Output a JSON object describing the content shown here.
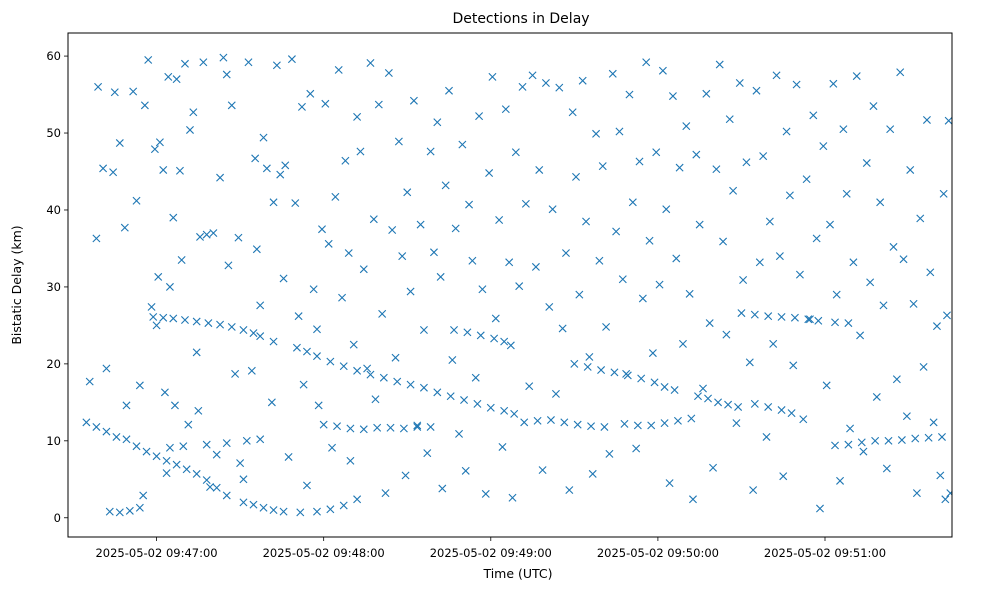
{
  "chart_data": {
    "type": "scatter",
    "title": "Detections in Delay",
    "xlabel": "Time (UTC)",
    "ylabel": "Bistatic Delay (km)",
    "x_unit": "minutes after 2025-05-02 09:46:00 UTC",
    "xlim": [
      0.47,
      5.76
    ],
    "ylim": [
      -2.5,
      63
    ],
    "x_ticks": [
      {
        "value": 1,
        "label": "2025-05-02 09:47:00"
      },
      {
        "value": 2,
        "label": "2025-05-02 09:48:00"
      },
      {
        "value": 3,
        "label": "2025-05-02 09:49:00"
      },
      {
        "value": 4,
        "label": "2025-05-02 09:50:00"
      },
      {
        "value": 5,
        "label": "2025-05-02 09:51:00"
      }
    ],
    "y_ticks": [
      0,
      10,
      20,
      30,
      40,
      50,
      60
    ],
    "marker": "x",
    "color": "#1f77b4",
    "track_points": [
      [
        0.98,
        26.1
      ],
      [
        1.04,
        26.0
      ],
      [
        1.1,
        25.9
      ],
      [
        1.17,
        25.7
      ],
      [
        1.24,
        25.5
      ],
      [
        1.31,
        25.3
      ],
      [
        1.38,
        25.1
      ],
      [
        1.45,
        24.8
      ],
      [
        1.52,
        24.4
      ],
      [
        1.58,
        24.0
      ],
      [
        1.62,
        23.6
      ],
      [
        1.7,
        22.9
      ],
      [
        1.84,
        22.1
      ],
      [
        1.9,
        21.6
      ],
      [
        1.96,
        21.0
      ],
      [
        2.04,
        20.3
      ],
      [
        2.12,
        19.7
      ],
      [
        2.2,
        19.1
      ],
      [
        2.28,
        18.6
      ],
      [
        2.36,
        18.2
      ],
      [
        2.44,
        17.7
      ],
      [
        2.52,
        17.3
      ],
      [
        2.6,
        16.9
      ],
      [
        2.68,
        16.3
      ],
      [
        2.76,
        15.8
      ],
      [
        2.84,
        15.3
      ],
      [
        2.92,
        14.8
      ],
      [
        3.0,
        14.3
      ],
      [
        3.08,
        13.9
      ],
      [
        3.14,
        13.5
      ],
      [
        2.78,
        24.4
      ],
      [
        2.86,
        24.1
      ],
      [
        2.94,
        23.7
      ],
      [
        3.02,
        23.3
      ],
      [
        3.08,
        22.9
      ],
      [
        3.12,
        22.4
      ],
      [
        3.5,
        20.0
      ],
      [
        3.58,
        19.6
      ],
      [
        3.66,
        19.2
      ],
      [
        3.74,
        18.9
      ],
      [
        3.82,
        18.5
      ],
      [
        3.9,
        18.1
      ],
      [
        3.98,
        17.6
      ],
      [
        4.04,
        17.0
      ],
      [
        4.1,
        16.6
      ],
      [
        4.24,
        15.8
      ],
      [
        4.3,
        15.5
      ],
      [
        4.36,
        15.0
      ],
      [
        4.42,
        14.7
      ],
      [
        4.48,
        14.4
      ],
      [
        4.58,
        14.8
      ],
      [
        4.66,
        14.4
      ],
      [
        4.74,
        14.0
      ],
      [
        4.8,
        13.6
      ],
      [
        4.5,
        26.6
      ],
      [
        4.58,
        26.4
      ],
      [
        4.66,
        26.2
      ],
      [
        4.74,
        26.1
      ],
      [
        4.82,
        26.0
      ],
      [
        4.9,
        25.8
      ],
      [
        4.96,
        25.6
      ],
      [
        5.06,
        25.4
      ],
      [
        5.14,
        25.3
      ],
      [
        0.58,
        12.4
      ],
      [
        0.64,
        11.8
      ],
      [
        0.7,
        11.2
      ],
      [
        0.76,
        10.5
      ],
      [
        0.82,
        10.2
      ],
      [
        0.88,
        9.3
      ],
      [
        0.94,
        8.6
      ],
      [
        1.0,
        8.0
      ],
      [
        1.06,
        7.4
      ],
      [
        1.12,
        6.9
      ],
      [
        1.18,
        6.3
      ],
      [
        1.24,
        5.7
      ],
      [
        1.3,
        4.9
      ],
      [
        1.36,
        3.9
      ],
      [
        1.42,
        2.9
      ],
      [
        1.52,
        2.0
      ],
      [
        1.58,
        1.7
      ],
      [
        1.64,
        1.3
      ],
      [
        1.7,
        1.0
      ],
      [
        1.76,
        0.8
      ],
      [
        1.86,
        0.7
      ],
      [
        1.96,
        0.8
      ],
      [
        2.04,
        1.1
      ],
      [
        2.12,
        1.6
      ],
      [
        2.2,
        2.4
      ],
      [
        0.72,
        0.8
      ],
      [
        0.78,
        0.7
      ],
      [
        0.84,
        0.9
      ],
      [
        0.9,
        1.3
      ],
      [
        2.0,
        12.1
      ],
      [
        2.08,
        11.9
      ],
      [
        2.16,
        11.6
      ],
      [
        2.24,
        11.5
      ],
      [
        2.32,
        11.7
      ],
      [
        2.4,
        11.7
      ],
      [
        2.48,
        11.6
      ],
      [
        2.56,
        11.8
      ],
      [
        2.64,
        11.8
      ],
      [
        3.2,
        12.4
      ],
      [
        3.28,
        12.6
      ],
      [
        3.36,
        12.7
      ],
      [
        3.44,
        12.4
      ],
      [
        3.52,
        12.1
      ],
      [
        3.6,
        11.9
      ],
      [
        3.68,
        11.8
      ],
      [
        3.8,
        12.2
      ],
      [
        3.88,
        12.0
      ],
      [
        3.96,
        12.0
      ],
      [
        4.04,
        12.3
      ],
      [
        4.12,
        12.6
      ],
      [
        4.2,
        12.9
      ],
      [
        1.08,
        9.1
      ],
      [
        1.16,
        9.3
      ],
      [
        1.3,
        9.5
      ],
      [
        1.42,
        9.7
      ],
      [
        1.54,
        10.0
      ],
      [
        1.62,
        10.2
      ],
      [
        5.06,
        9.4
      ],
      [
        5.14,
        9.5
      ],
      [
        5.22,
        9.8
      ],
      [
        5.3,
        10.0
      ],
      [
        5.38,
        10.0
      ],
      [
        5.46,
        10.1
      ],
      [
        5.54,
        10.3
      ],
      [
        5.62,
        10.4
      ],
      [
        5.7,
        10.5
      ]
    ],
    "noise_points": [
      [
        0.6,
        17.7
      ],
      [
        0.64,
        36.3
      ],
      [
        0.65,
        56.0
      ],
      [
        0.68,
        45.4
      ],
      [
        0.7,
        19.4
      ],
      [
        0.74,
        44.9
      ],
      [
        0.75,
        55.3
      ],
      [
        0.78,
        48.7
      ],
      [
        0.81,
        37.7
      ],
      [
        0.82,
        14.6
      ],
      [
        0.86,
        55.4
      ],
      [
        0.88,
        41.2
      ],
      [
        0.9,
        17.2
      ],
      [
        0.92,
        2.9
      ],
      [
        0.93,
        53.6
      ],
      [
        0.95,
        59.5
      ],
      [
        0.97,
        27.4
      ],
      [
        0.99,
        47.9
      ],
      [
        1.0,
        25.0
      ],
      [
        1.01,
        31.3
      ],
      [
        1.02,
        48.8
      ],
      [
        1.04,
        45.2
      ],
      [
        1.05,
        16.3
      ],
      [
        1.06,
        5.8
      ],
      [
        1.07,
        57.3
      ],
      [
        1.08,
        30.0
      ],
      [
        1.1,
        39.0
      ],
      [
        1.11,
        14.6
      ],
      [
        1.12,
        57.0
      ],
      [
        1.14,
        45.1
      ],
      [
        1.15,
        33.5
      ],
      [
        1.17,
        59.0
      ],
      [
        1.19,
        12.1
      ],
      [
        1.2,
        50.4
      ],
      [
        1.22,
        52.7
      ],
      [
        1.24,
        21.5
      ],
      [
        1.25,
        13.9
      ],
      [
        1.26,
        36.5
      ],
      [
        1.28,
        59.2
      ],
      [
        1.3,
        36.8
      ],
      [
        1.32,
        4.0
      ],
      [
        1.34,
        37.0
      ],
      [
        1.36,
        8.2
      ],
      [
        1.38,
        44.2
      ],
      [
        1.4,
        59.8
      ],
      [
        1.42,
        57.6
      ],
      [
        1.43,
        32.8
      ],
      [
        1.45,
        53.6
      ],
      [
        1.47,
        18.7
      ],
      [
        1.49,
        36.4
      ],
      [
        1.5,
        7.1
      ],
      [
        1.52,
        5.0
      ],
      [
        1.55,
        59.2
      ],
      [
        1.57,
        19.1
      ],
      [
        1.59,
        46.7
      ],
      [
        1.6,
        34.9
      ],
      [
        1.62,
        27.6
      ],
      [
        1.64,
        49.4
      ],
      [
        1.66,
        45.4
      ],
      [
        1.69,
        15.0
      ],
      [
        1.7,
        41.0
      ],
      [
        1.72,
        58.8
      ],
      [
        1.74,
        44.6
      ],
      [
        1.76,
        31.1
      ],
      [
        1.77,
        45.8
      ],
      [
        1.79,
        7.9
      ],
      [
        1.81,
        59.6
      ],
      [
        1.83,
        40.9
      ],
      [
        1.85,
        26.2
      ],
      [
        1.87,
        53.4
      ],
      [
        1.88,
        17.3
      ],
      [
        1.9,
        4.2
      ],
      [
        1.92,
        55.1
      ],
      [
        1.94,
        29.7
      ],
      [
        1.96,
        24.5
      ],
      [
        1.97,
        14.6
      ],
      [
        1.99,
        37.5
      ],
      [
        2.01,
        53.8
      ],
      [
        2.03,
        35.6
      ],
      [
        2.05,
        9.1
      ],
      [
        2.07,
        41.7
      ],
      [
        2.09,
        58.2
      ],
      [
        2.11,
        28.6
      ],
      [
        2.13,
        46.4
      ],
      [
        2.15,
        34.4
      ],
      [
        2.16,
        7.4
      ],
      [
        2.18,
        22.5
      ],
      [
        2.2,
        52.1
      ],
      [
        2.22,
        47.6
      ],
      [
        2.24,
        32.3
      ],
      [
        2.26,
        19.4
      ],
      [
        2.28,
        59.1
      ],
      [
        2.3,
        38.8
      ],
      [
        2.31,
        15.4
      ],
      [
        2.33,
        53.7
      ],
      [
        2.35,
        26.5
      ],
      [
        2.37,
        3.2
      ],
      [
        2.39,
        57.8
      ],
      [
        2.41,
        37.4
      ],
      [
        2.43,
        20.8
      ],
      [
        2.45,
        48.9
      ],
      [
        2.47,
        34.0
      ],
      [
        2.49,
        5.5
      ],
      [
        2.5,
        42.3
      ],
      [
        2.52,
        29.4
      ],
      [
        2.54,
        54.2
      ],
      [
        2.56,
        12.0
      ],
      [
        2.58,
        38.1
      ],
      [
        2.6,
        24.4
      ],
      [
        2.62,
        8.4
      ],
      [
        2.64,
        47.6
      ],
      [
        2.66,
        34.5
      ],
      [
        2.68,
        51.4
      ],
      [
        2.7,
        31.3
      ],
      [
        2.71,
        3.8
      ],
      [
        2.73,
        43.2
      ],
      [
        2.75,
        55.5
      ],
      [
        2.77,
        20.5
      ],
      [
        2.79,
        37.6
      ],
      [
        2.81,
        10.9
      ],
      [
        2.83,
        48.5
      ],
      [
        2.85,
        6.1
      ],
      [
        2.87,
        40.7
      ],
      [
        2.89,
        33.4
      ],
      [
        2.91,
        18.2
      ],
      [
        2.93,
        52.2
      ],
      [
        2.95,
        29.7
      ],
      [
        2.97,
        3.1
      ],
      [
        2.99,
        44.8
      ],
      [
        3.01,
        57.3
      ],
      [
        3.03,
        25.9
      ],
      [
        3.05,
        38.7
      ],
      [
        3.07,
        9.2
      ],
      [
        3.09,
        53.1
      ],
      [
        3.11,
        33.2
      ],
      [
        3.13,
        2.6
      ],
      [
        3.15,
        47.5
      ],
      [
        3.17,
        30.1
      ],
      [
        3.19,
        56.0
      ],
      [
        3.21,
        40.8
      ],
      [
        3.23,
        17.1
      ],
      [
        3.25,
        57.5
      ],
      [
        3.27,
        32.6
      ],
      [
        3.29,
        45.2
      ],
      [
        3.31,
        6.2
      ],
      [
        3.33,
        56.5
      ],
      [
        3.35,
        27.4
      ],
      [
        3.37,
        40.1
      ],
      [
        3.39,
        16.1
      ],
      [
        3.41,
        55.9
      ],
      [
        3.43,
        24.6
      ],
      [
        3.45,
        34.4
      ],
      [
        3.47,
        3.6
      ],
      [
        3.49,
        52.7
      ],
      [
        3.51,
        44.3
      ],
      [
        3.53,
        29.0
      ],
      [
        3.55,
        56.8
      ],
      [
        3.57,
        38.5
      ],
      [
        3.59,
        20.9
      ],
      [
        3.61,
        5.7
      ],
      [
        3.63,
        49.9
      ],
      [
        3.65,
        33.4
      ],
      [
        3.67,
        45.7
      ],
      [
        3.69,
        24.8
      ],
      [
        3.71,
        8.3
      ],
      [
        3.73,
        57.7
      ],
      [
        3.75,
        37.2
      ],
      [
        3.77,
        50.2
      ],
      [
        3.79,
        31.0
      ],
      [
        3.81,
        18.7
      ],
      [
        3.83,
        55.0
      ],
      [
        3.85,
        41.0
      ],
      [
        3.87,
        9.0
      ],
      [
        3.89,
        46.3
      ],
      [
        3.91,
        28.5
      ],
      [
        3.93,
        59.2
      ],
      [
        3.95,
        36.0
      ],
      [
        3.97,
        21.4
      ],
      [
        3.99,
        47.5
      ],
      [
        4.01,
        30.3
      ],
      [
        4.03,
        58.1
      ],
      [
        4.05,
        40.1
      ],
      [
        4.07,
        4.5
      ],
      [
        4.09,
        54.8
      ],
      [
        4.11,
        33.7
      ],
      [
        4.13,
        45.5
      ],
      [
        4.15,
        22.6
      ],
      [
        4.17,
        50.9
      ],
      [
        4.19,
        29.1
      ],
      [
        4.21,
        2.4
      ],
      [
        4.23,
        47.2
      ],
      [
        4.25,
        38.1
      ],
      [
        4.27,
        16.8
      ],
      [
        4.29,
        55.1
      ],
      [
        4.31,
        25.3
      ],
      [
        4.33,
        6.5
      ],
      [
        4.35,
        45.3
      ],
      [
        4.37,
        58.9
      ],
      [
        4.39,
        35.9
      ],
      [
        4.41,
        23.8
      ],
      [
        4.43,
        51.8
      ],
      [
        4.45,
        42.5
      ],
      [
        4.47,
        12.3
      ],
      [
        4.49,
        56.5
      ],
      [
        4.51,
        30.9
      ],
      [
        4.53,
        46.2
      ],
      [
        4.55,
        20.2
      ],
      [
        4.57,
        3.6
      ],
      [
        4.59,
        55.5
      ],
      [
        4.61,
        33.2
      ],
      [
        4.63,
        47.0
      ],
      [
        4.65,
        10.5
      ],
      [
        4.67,
        38.5
      ],
      [
        4.69,
        22.6
      ],
      [
        4.71,
        57.5
      ],
      [
        4.73,
        34.0
      ],
      [
        4.75,
        5.4
      ],
      [
        4.77,
        50.2
      ],
      [
        4.79,
        41.9
      ],
      [
        4.81,
        19.8
      ],
      [
        4.83,
        56.3
      ],
      [
        4.85,
        31.6
      ],
      [
        4.87,
        12.8
      ],
      [
        4.89,
        44.0
      ],
      [
        4.91,
        25.8
      ],
      [
        4.93,
        52.3
      ],
      [
        4.95,
        36.3
      ],
      [
        4.97,
        1.2
      ],
      [
        4.99,
        48.3
      ],
      [
        5.01,
        17.2
      ],
      [
        5.03,
        38.1
      ],
      [
        5.05,
        56.4
      ],
      [
        5.07,
        29.0
      ],
      [
        5.09,
        4.8
      ],
      [
        5.11,
        50.5
      ],
      [
        5.13,
        42.1
      ],
      [
        5.15,
        11.6
      ],
      [
        5.17,
        33.2
      ],
      [
        5.19,
        57.4
      ],
      [
        5.21,
        23.7
      ],
      [
        5.23,
        8.6
      ],
      [
        5.25,
        46.1
      ],
      [
        5.27,
        30.6
      ],
      [
        5.29,
        53.5
      ],
      [
        5.31,
        15.7
      ],
      [
        5.33,
        41.0
      ],
      [
        5.35,
        27.6
      ],
      [
        5.37,
        6.4
      ],
      [
        5.39,
        50.5
      ],
      [
        5.41,
        35.2
      ],
      [
        5.43,
        18.0
      ],
      [
        5.45,
        57.9
      ],
      [
        5.47,
        33.6
      ],
      [
        5.49,
        13.2
      ],
      [
        5.51,
        45.2
      ],
      [
        5.53,
        27.8
      ],
      [
        5.55,
        3.2
      ],
      [
        5.57,
        38.9
      ],
      [
        5.59,
        19.6
      ],
      [
        5.61,
        51.7
      ],
      [
        5.63,
        31.9
      ],
      [
        5.65,
        12.4
      ],
      [
        5.67,
        24.9
      ],
      [
        5.69,
        5.5
      ],
      [
        5.71,
        42.1
      ],
      [
        5.72,
        2.4
      ],
      [
        5.73,
        26.3
      ],
      [
        5.74,
        51.6
      ],
      [
        5.75,
        3.2
      ]
    ]
  }
}
